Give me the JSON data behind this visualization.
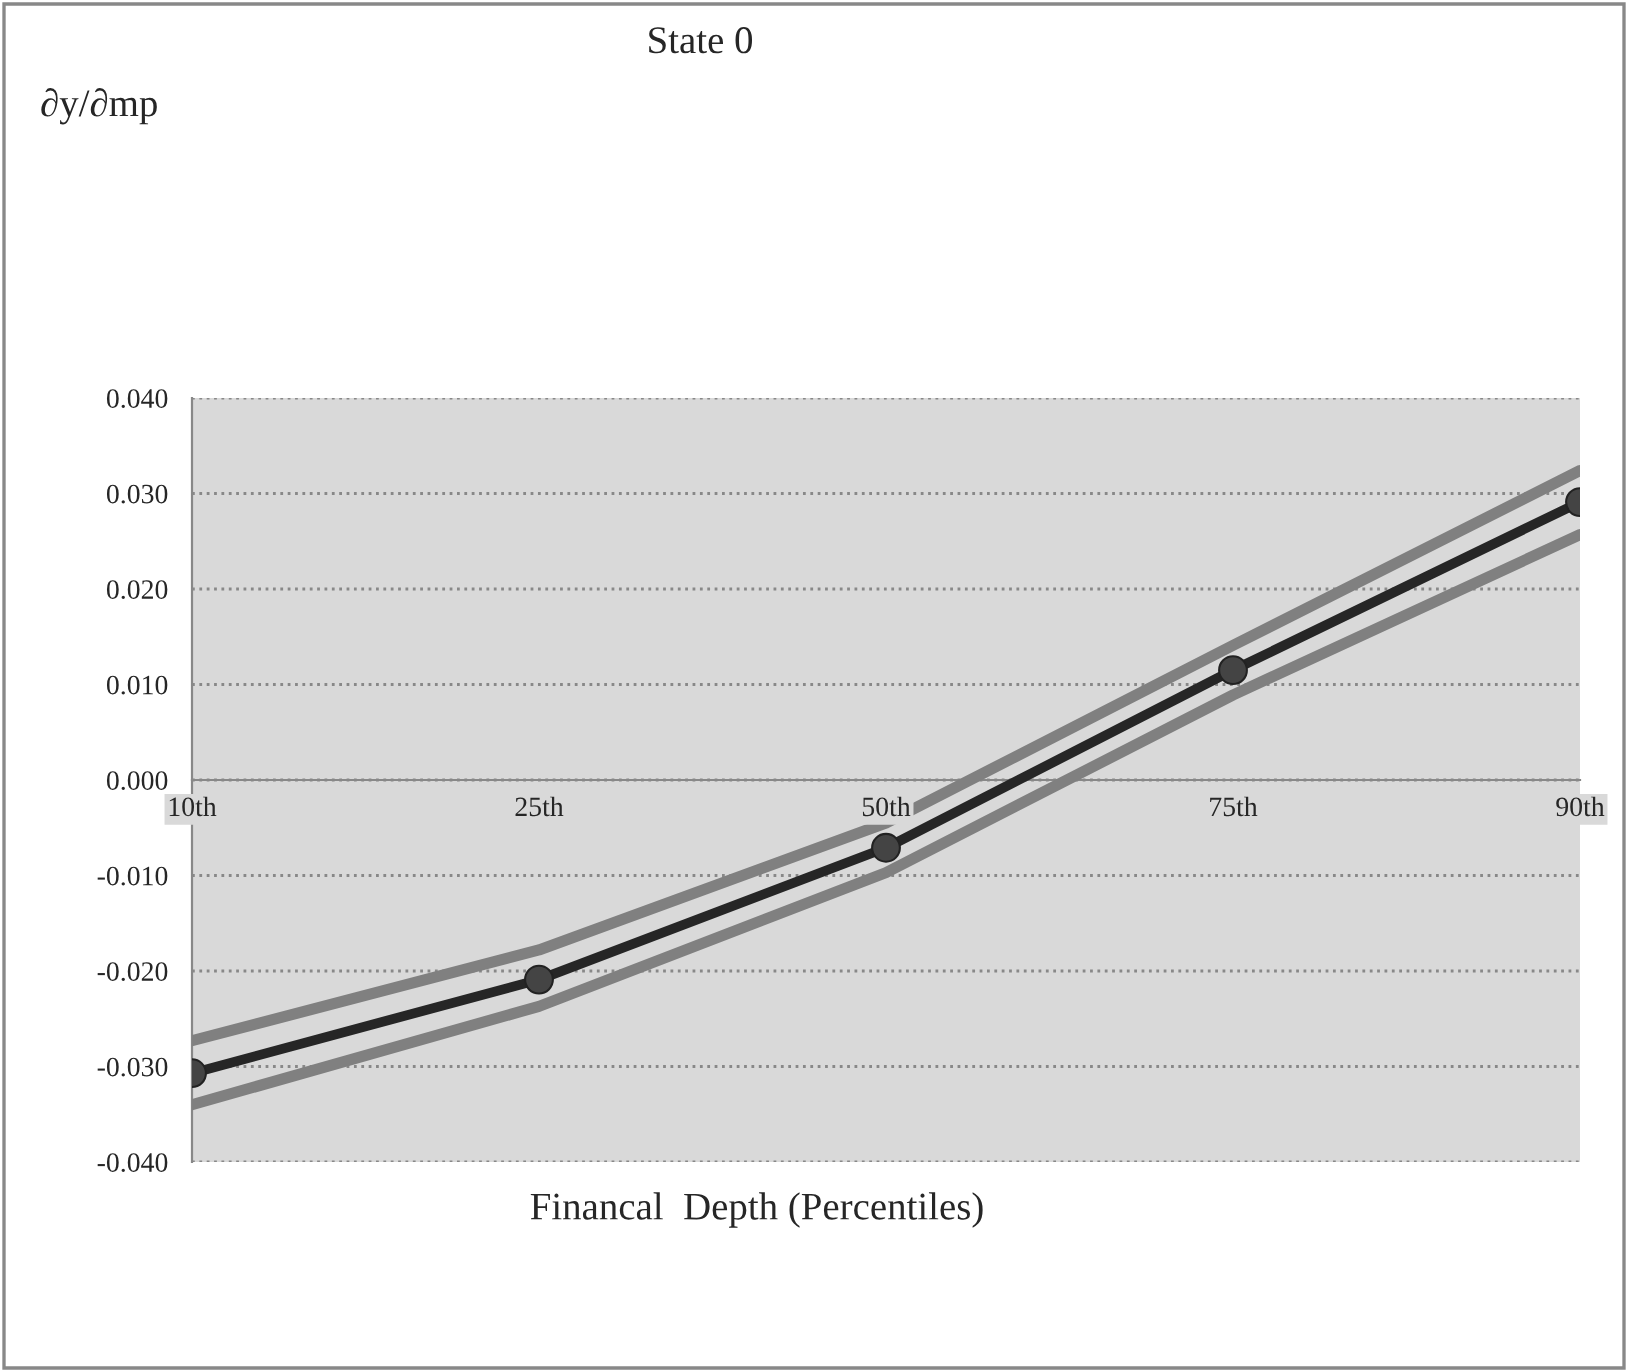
{
  "chart_data": {
    "type": "line",
    "title": "State 0",
    "annotations": [
      "∂y/∂mp"
    ],
    "xlabel": "Financal  Depth (Percentiles)",
    "categories": [
      "10th",
      "25th",
      "50th",
      "75th",
      "90th"
    ],
    "series": [
      {
        "color": "#808080",
        "values": [
          -0.0273,
          -0.0178,
          -0.0045,
          0.0141,
          0.0324
        ],
        "marker": "none"
      },
      {
        "color": "#808080",
        "values": [
          -0.034,
          -0.0237,
          -0.0097,
          0.0089,
          0.0257
        ],
        "marker": "none"
      },
      {
        "color": "#262626",
        "values": [
          -0.0307,
          -0.0209,
          -0.0071,
          0.0115,
          0.0291
        ],
        "marker": "circle"
      }
    ],
    "ylim": [
      -0.04,
      0.04
    ],
    "yticks": [
      {
        "value": -0.04,
        "label": "-0.040"
      },
      {
        "value": -0.03,
        "label": "-0.030"
      },
      {
        "value": -0.02,
        "label": "-0.020"
      },
      {
        "value": -0.01,
        "label": "-0.010"
      },
      {
        "value": 0,
        "label": "0.000"
      },
      {
        "value": 0.01,
        "label": "0.010"
      },
      {
        "value": 0.02,
        "label": "0.020"
      },
      {
        "value": 0.03,
        "label": "0.030"
      },
      {
        "value": 0.04,
        "label": "0.040"
      }
    ],
    "grid": "y",
    "line_style": "solid"
  }
}
